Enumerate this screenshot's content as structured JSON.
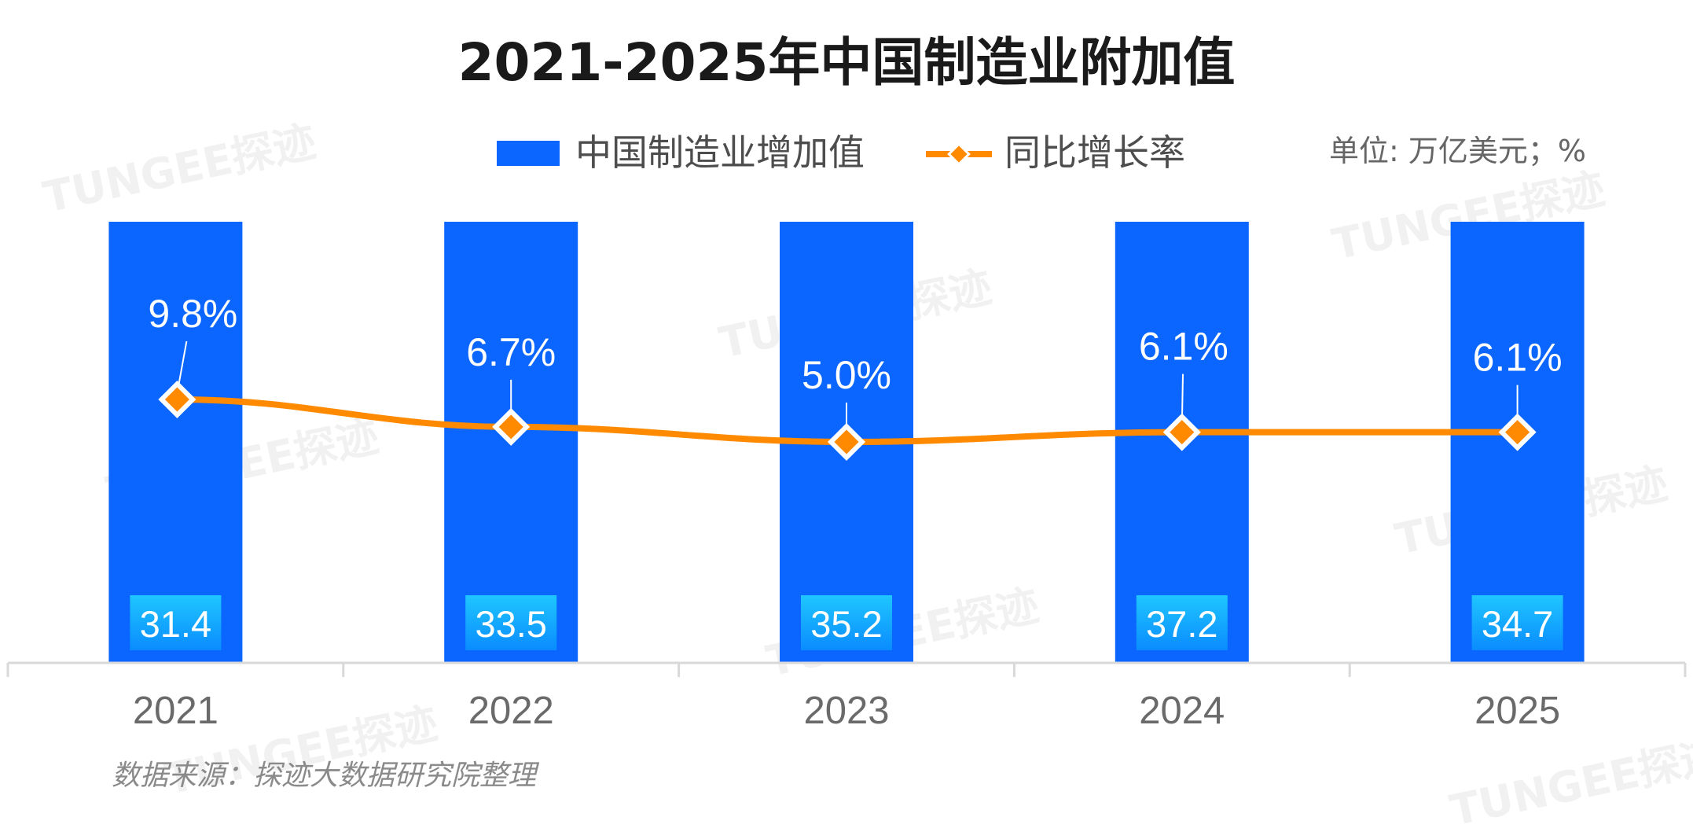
{
  "colors": {
    "bar": "#0a66ff",
    "bar_label_box_top": "#1fc6ff",
    "bar_label_box_bottom": "#0a8cff",
    "line": "#ff8a00",
    "axis": "#d9d9d9"
  },
  "watermark": "TUNGEE探迹",
  "unit": "单位: 万亿美元；%",
  "source": "数据来源：探迹大数据研究院整理",
  "chart_data": {
    "type": "bar",
    "title": "2021-2025年中国制造业附加值",
    "categories": [
      "2021",
      "2022",
      "2023",
      "2024",
      "2025"
    ],
    "series": [
      {
        "name": "中国制造业增加值",
        "type": "bar",
        "values": [
          31.4,
          33.5,
          35.2,
          37.2,
          34.7
        ],
        "labels": [
          "31.4",
          "33.5",
          "35.2",
          "37.2",
          "34.7"
        ]
      },
      {
        "name": "同比增长率",
        "type": "line",
        "values": [
          9.8,
          6.7,
          5.0,
          6.1,
          6.1
        ],
        "labels": [
          "9.8%",
          "6.7%",
          "5.0%",
          "6.1%",
          "6.1%"
        ]
      }
    ],
    "legend_position": "top",
    "grid": false
  }
}
